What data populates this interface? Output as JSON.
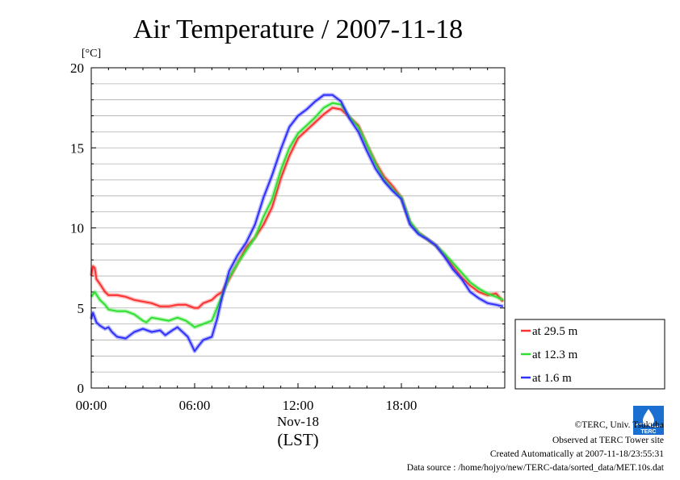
{
  "chart_data": {
    "type": "line",
    "title": "Air Temperature / 2007-11-18",
    "ylabel": "[°C]",
    "xlabel": "(LST)",
    "x_date_label": "Nov-18",
    "x_unit": "hours",
    "xlim": [
      0,
      24
    ],
    "ylim": [
      0,
      20
    ],
    "x_ticks": [
      "00:00",
      "06:00",
      "12:00",
      "18:00"
    ],
    "y_ticks": [
      "0",
      "5",
      "10",
      "15",
      "20"
    ],
    "grid": true,
    "legend_position": "right",
    "series": [
      {
        "name": "at 29.5 m",
        "color": "#ff3030",
        "x": [
          0.0,
          0.1,
          0.2,
          0.3,
          0.5,
          0.8,
          1.0,
          1.5,
          2.0,
          2.5,
          3.0,
          3.5,
          4.0,
          4.5,
          5.0,
          5.5,
          6.0,
          6.2,
          6.5,
          7.0,
          7.3,
          7.6,
          8.0,
          8.5,
          9.0,
          9.5,
          10.0,
          10.5,
          11.0,
          11.5,
          12.0,
          12.5,
          13.0,
          13.5,
          14.0,
          14.5,
          15.0,
          15.5,
          16.0,
          16.5,
          17.0,
          17.5,
          18.0,
          18.5,
          19.0,
          19.5,
          20.0,
          20.5,
          21.0,
          21.5,
          22.0,
          22.5,
          23.0,
          23.5,
          23.9
        ],
        "y": [
          7.0,
          7.6,
          7.5,
          6.8,
          6.5,
          6.0,
          5.8,
          5.8,
          5.7,
          5.5,
          5.4,
          5.3,
          5.1,
          5.1,
          5.2,
          5.2,
          5.0,
          5.0,
          5.3,
          5.5,
          5.8,
          6.0,
          6.8,
          7.8,
          8.8,
          9.4,
          10.2,
          11.3,
          13.1,
          14.5,
          15.6,
          16.1,
          16.6,
          17.1,
          17.5,
          17.4,
          16.9,
          16.4,
          15.2,
          14.1,
          13.2,
          12.6,
          11.9,
          10.3,
          9.7,
          9.3,
          8.9,
          8.3,
          7.6,
          6.9,
          6.4,
          6.0,
          5.8,
          5.9,
          5.4
        ]
      },
      {
        "name": "at 12.3 m",
        "color": "#30e030",
        "x": [
          0.0,
          0.2,
          0.5,
          0.8,
          1.0,
          1.5,
          2.0,
          2.5,
          3.0,
          3.2,
          3.5,
          4.0,
          4.5,
          5.0,
          5.5,
          6.0,
          6.5,
          7.0,
          7.3,
          7.6,
          8.0,
          8.5,
          9.0,
          9.5,
          10.0,
          10.5,
          11.0,
          11.5,
          12.0,
          12.5,
          13.0,
          13.5,
          14.0,
          14.5,
          15.0,
          15.5,
          16.0,
          16.5,
          17.0,
          17.5,
          18.0,
          18.5,
          19.0,
          19.5,
          20.0,
          20.5,
          21.0,
          21.5,
          22.0,
          22.5,
          23.0,
          23.5,
          23.9
        ],
        "y": [
          5.7,
          6.0,
          5.5,
          5.2,
          4.9,
          4.8,
          4.8,
          4.6,
          4.2,
          4.1,
          4.4,
          4.3,
          4.2,
          4.4,
          4.2,
          3.8,
          4.0,
          4.2,
          5.0,
          5.8,
          6.9,
          7.8,
          8.6,
          9.4,
          10.7,
          11.8,
          13.6,
          15.0,
          15.9,
          16.4,
          16.9,
          17.5,
          17.8,
          17.7,
          16.9,
          16.3,
          15.2,
          14.0,
          13.0,
          12.4,
          11.9,
          10.4,
          9.7,
          9.3,
          8.9,
          8.4,
          7.8,
          7.2,
          6.6,
          6.2,
          5.9,
          5.7,
          5.5
        ]
      },
      {
        "name": "at 1.6 m",
        "color": "#3030ff",
        "x": [
          0.0,
          0.1,
          0.3,
          0.5,
          0.8,
          1.0,
          1.2,
          1.5,
          2.0,
          2.5,
          3.0,
          3.5,
          4.0,
          4.3,
          4.7,
          5.0,
          5.3,
          5.6,
          6.0,
          6.2,
          6.5,
          7.0,
          7.3,
          7.6,
          8.0,
          8.5,
          9.0,
          9.5,
          10.0,
          10.5,
          11.0,
          11.5,
          12.0,
          12.5,
          13.0,
          13.5,
          14.0,
          14.5,
          15.0,
          15.5,
          16.0,
          16.5,
          17.0,
          17.5,
          18.0,
          18.5,
          19.0,
          19.5,
          20.0,
          20.5,
          21.0,
          21.5,
          22.0,
          22.5,
          23.0,
          23.5,
          23.9
        ],
        "y": [
          4.3,
          4.7,
          4.1,
          3.9,
          3.7,
          3.8,
          3.5,
          3.2,
          3.1,
          3.5,
          3.7,
          3.5,
          3.6,
          3.3,
          3.6,
          3.8,
          3.5,
          3.2,
          2.3,
          2.6,
          3.0,
          3.2,
          4.3,
          5.7,
          7.3,
          8.3,
          9.1,
          10.2,
          11.9,
          13.3,
          14.9,
          16.3,
          17.0,
          17.4,
          17.9,
          18.3,
          18.3,
          17.9,
          16.8,
          16.0,
          14.8,
          13.7,
          12.9,
          12.3,
          11.8,
          10.2,
          9.6,
          9.3,
          8.9,
          8.2,
          7.4,
          6.8,
          6.0,
          5.6,
          5.3,
          5.2,
          5.1
        ]
      }
    ]
  },
  "footer": {
    "copyright": "©TERC, Univ. Tsukuba",
    "observed": "Observed at TERC Tower site",
    "created": "Created Automatically at 2007-11-18/23:55:31",
    "source": "Data source : /home/hojyo/new/TERC-data/sorted_data/MET.10s.dat"
  },
  "logo": {
    "text": "TERC"
  }
}
